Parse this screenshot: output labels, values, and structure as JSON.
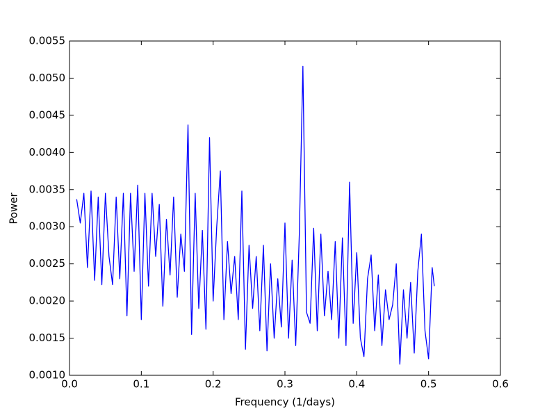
{
  "chart_data": {
    "type": "line",
    "xlabel": "Frequency (1/days)",
    "ylabel": "Power",
    "xlim": [
      0,
      0.6
    ],
    "xticks": [
      {
        "value": 0,
        "label": "0.0"
      },
      0.1,
      0.2,
      0.3,
      0.4,
      0.5,
      0.6
    ],
    "ylim": [
      0.001,
      0.0055
    ],
    "yticks": [
      {
        "value": 0.001,
        "label": "0.0010"
      },
      0.0015,
      {
        "value": 0.002,
        "label": "0.0020"
      },
      0.0025,
      {
        "value": 0.003,
        "label": "0.0030"
      },
      0.0035,
      {
        "value": 0.004,
        "label": "0.0040"
      },
      0.0045,
      {
        "value": 0.005,
        "label": "0.0050"
      },
      0.0055
    ],
    "grid": false,
    "x": [
      0.01,
      0.015,
      0.02,
      0.025,
      0.03,
      0.035,
      0.04,
      0.045,
      0.05,
      0.055,
      0.06,
      0.065,
      0.07,
      0.075,
      0.08,
      0.085,
      0.09,
      0.095,
      0.1,
      0.105,
      0.11,
      0.115,
      0.12,
      0.125,
      0.13,
      0.135,
      0.14,
      0.145,
      0.15,
      0.155,
      0.16,
      0.165,
      0.17,
      0.175,
      0.18,
      0.185,
      0.19,
      0.195,
      0.2,
      0.205,
      0.21,
      0.215,
      0.22,
      0.225,
      0.23,
      0.235,
      0.24,
      0.245,
      0.25,
      0.255,
      0.26,
      0.265,
      0.27,
      0.275,
      0.28,
      0.285,
      0.29,
      0.295,
      0.3,
      0.305,
      0.31,
      0.315,
      0.32,
      0.325,
      0.33,
      0.335,
      0.34,
      0.345,
      0.35,
      0.355,
      0.36,
      0.365,
      0.37,
      0.375,
      0.38,
      0.385,
      0.39,
      0.395,
      0.4,
      0.405,
      0.41,
      0.415,
      0.42,
      0.425,
      0.43,
      0.435,
      0.44,
      0.445,
      0.45,
      0.455,
      0.46,
      0.465,
      0.47,
      0.475,
      0.48,
      0.485,
      0.49,
      0.495,
      0.5,
      0.505,
      0.508
    ],
    "series": [
      {
        "color": "#0000ff",
        "values": [
          0.00337,
          0.00305,
          0.00345,
          0.00245,
          0.00348,
          0.00228,
          0.0034,
          0.00222,
          0.00345,
          0.0026,
          0.00222,
          0.0034,
          0.0023,
          0.00345,
          0.0018,
          0.00345,
          0.0024,
          0.00356,
          0.00175,
          0.00345,
          0.0022,
          0.00345,
          0.0026,
          0.0033,
          0.00193,
          0.0031,
          0.00235,
          0.0034,
          0.00205,
          0.0029,
          0.0024,
          0.00437,
          0.00155,
          0.00345,
          0.0019,
          0.00295,
          0.00162,
          0.0042,
          0.002,
          0.003,
          0.00375,
          0.00175,
          0.0028,
          0.0021,
          0.0026,
          0.00175,
          0.00348,
          0.00135,
          0.00275,
          0.0019,
          0.0026,
          0.0016,
          0.00275,
          0.00133,
          0.0025,
          0.0015,
          0.0023,
          0.00165,
          0.00305,
          0.0015,
          0.00255,
          0.0014,
          0.0029,
          0.00516,
          0.00185,
          0.0017,
          0.00298,
          0.0016,
          0.0029,
          0.0018,
          0.0024,
          0.00175,
          0.0028,
          0.0015,
          0.00285,
          0.0014,
          0.0036,
          0.0017,
          0.00265,
          0.0015,
          0.00125,
          0.0023,
          0.00262,
          0.0016,
          0.00235,
          0.0014,
          0.00215,
          0.00175,
          0.00195,
          0.0025,
          0.00115,
          0.00215,
          0.0015,
          0.00225,
          0.0013,
          0.0024,
          0.0029,
          0.0016,
          0.00122,
          0.00245,
          0.0022
        ]
      }
    ]
  }
}
